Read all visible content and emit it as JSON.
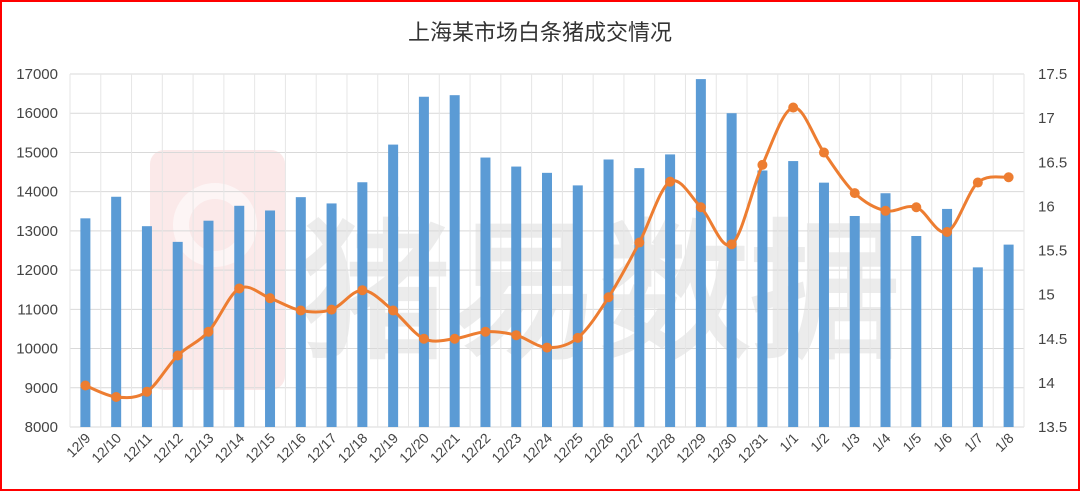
{
  "chart_data": {
    "type": "bar+line",
    "title": "上海某市场白条猪成交情况",
    "watermark": "猪易数据",
    "categories": [
      "12/9",
      "12/10",
      "12/11",
      "12/12",
      "12/13",
      "12/14",
      "12/15",
      "12/16",
      "12/17",
      "12/18",
      "12/19",
      "12/20",
      "12/21",
      "12/22",
      "12/23",
      "12/24",
      "12/25",
      "12/26",
      "12/27",
      "12/28",
      "12/29",
      "12/30",
      "12/31",
      "1/1",
      "1/2",
      "1/3",
      "1/4",
      "1/5",
      "1/6",
      "1/7",
      "1/8"
    ],
    "series": [
      {
        "type": "bar",
        "axis": "left",
        "color": "#5b9bd5",
        "values": [
          13320,
          13870,
          13120,
          12720,
          13260,
          13640,
          13520,
          13860,
          13700,
          14240,
          15200,
          16420,
          16460,
          14870,
          14640,
          14480,
          14160,
          14820,
          14600,
          14950,
          16870,
          16000,
          14540,
          14780,
          14230,
          13380,
          13960,
          12870,
          13560,
          12070,
          12650
        ]
      },
      {
        "type": "line",
        "axis": "right",
        "color": "#ed7d31",
        "values": [
          13.97,
          13.84,
          13.9,
          14.31,
          14.58,
          15.07,
          14.96,
          14.82,
          14.83,
          15.05,
          14.82,
          14.5,
          14.5,
          14.58,
          14.54,
          14.4,
          14.51,
          14.97,
          15.59,
          16.28,
          15.99,
          15.57,
          16.47,
          17.12,
          16.61,
          16.15,
          15.95,
          15.99,
          15.71,
          16.27,
          16.33
        ]
      }
    ],
    "y_left": {
      "min": 8000,
      "max": 17000,
      "ticks": [
        "8000",
        "9000",
        "10000",
        "11000",
        "12000",
        "13000",
        "14000",
        "15000",
        "16000",
        "17000"
      ]
    },
    "y_right": {
      "min": 13.5,
      "max": 17.5,
      "ticks": [
        "13.5",
        "14",
        "14.5",
        "15",
        "15.5",
        "16",
        "16.5",
        "17",
        "17.5"
      ]
    },
    "grid": true,
    "frame_color": "#ff0000"
  }
}
